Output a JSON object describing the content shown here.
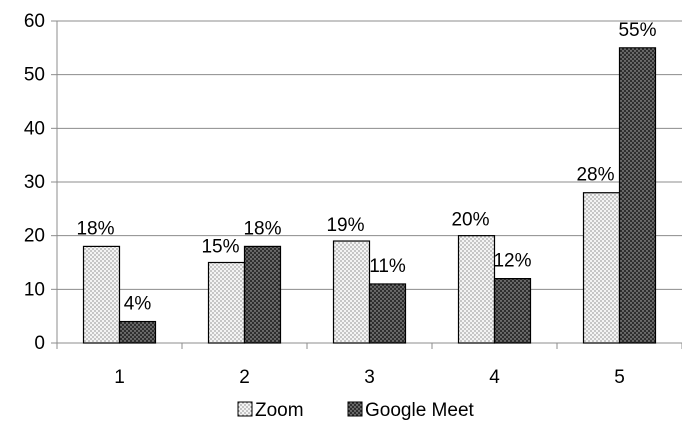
{
  "chart_data": {
    "type": "bar",
    "categories": [
      "1",
      "2",
      "3",
      "4",
      "5"
    ],
    "series": [
      {
        "name": "Zoom",
        "values": [
          18,
          15,
          19,
          20,
          28
        ],
        "labels": [
          "18%",
          "15%",
          "19%",
          "20%",
          "28%"
        ],
        "pattern": "light-dots"
      },
      {
        "name": "Google Meet",
        "values": [
          4,
          18,
          11,
          12,
          55
        ],
        "labels": [
          "4%",
          "18%",
          "11%",
          "12%",
          "55%"
        ],
        "pattern": "dark-dots"
      }
    ],
    "ylim": [
      0,
      60
    ],
    "yticks": [
      "0",
      "10",
      "20",
      "30",
      "40",
      "50",
      "60"
    ],
    "grid": true,
    "legend_position": "bottom",
    "colors": {
      "grid": "#8c8c8c",
      "axis": "#8c8c8c",
      "bar_outline": "#000000",
      "light_fill": "#f2f2f2",
      "dark_fill": "#3a3a3a"
    }
  }
}
